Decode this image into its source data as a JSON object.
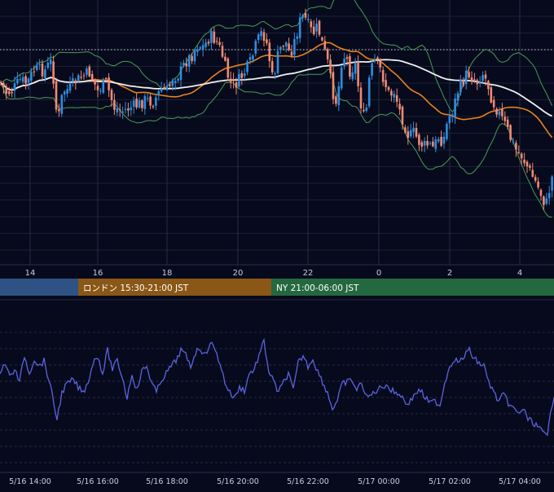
{
  "sessions": [
    {
      "label": "",
      "color": "#2e5283"
    },
    {
      "label": "ロンドン 15:30-21:00 JST",
      "color": "#8a5716"
    },
    {
      "label": "NY 21:00-06:00 JST",
      "color": "#24683f"
    }
  ],
  "chart_data": [
    {
      "type": "candlestick",
      "title": "",
      "x_tick_labels": [
        "14",
        "16",
        "18",
        "20",
        "22",
        "0",
        "2",
        "4"
      ],
      "overlays": [
        {
          "kind": "bollinger-bands",
          "color": "#4a9a58"
        },
        {
          "kind": "moving-average-fast",
          "color": "#e8821e"
        },
        {
          "kind": "moving-average-slow",
          "color": "#f0f0f0"
        }
      ],
      "colors": {
        "up": "#2f8ee0",
        "down": "#ef8a74"
      },
      "reference_line": "dotted",
      "ylim": [
        60,
        330
      ],
      "ohlc_anchors": [
        {
          "x": 0,
          "close": 140
        },
        {
          "x": 8,
          "close": 152
        },
        {
          "x": 15,
          "close": 150
        },
        {
          "x": 25,
          "close": 138
        },
        {
          "x": 33,
          "close": 142
        },
        {
          "x": 42,
          "close": 127
        },
        {
          "x": 55,
          "close": 128
        },
        {
          "x": 62,
          "close": 118
        },
        {
          "x": 66,
          "close": 138
        },
        {
          "x": 70,
          "close": 180
        },
        {
          "x": 73,
          "close": 175
        },
        {
          "x": 77,
          "close": 150
        },
        {
          "x": 85,
          "close": 148
        },
        {
          "x": 92,
          "close": 140
        },
        {
          "x": 100,
          "close": 135
        },
        {
          "x": 110,
          "close": 130
        },
        {
          "x": 120,
          "close": 150
        },
        {
          "x": 130,
          "close": 140
        },
        {
          "x": 140,
          "close": 168
        },
        {
          "x": 150,
          "close": 172
        },
        {
          "x": 160,
          "close": 168
        },
        {
          "x": 170,
          "close": 165
        },
        {
          "x": 178,
          "close": 160
        },
        {
          "x": 188,
          "close": 162
        },
        {
          "x": 198,
          "close": 148
        },
        {
          "x": 206,
          "close": 150
        },
        {
          "x": 212,
          "close": 135
        },
        {
          "x": 220,
          "close": 132
        },
        {
          "x": 228,
          "close": 118
        },
        {
          "x": 235,
          "close": 112
        },
        {
          "x": 242,
          "close": 100
        },
        {
          "x": 250,
          "close": 102
        },
        {
          "x": 258,
          "close": 90
        },
        {
          "x": 265,
          "close": 95
        },
        {
          "x": 272,
          "close": 108
        },
        {
          "x": 278,
          "close": 130
        },
        {
          "x": 285,
          "close": 145
        },
        {
          "x": 292,
          "close": 140
        },
        {
          "x": 300,
          "close": 130
        },
        {
          "x": 308,
          "close": 118
        },
        {
          "x": 315,
          "close": 98
        },
        {
          "x": 322,
          "close": 85
        },
        {
          "x": 328,
          "close": 100
        },
        {
          "x": 335,
          "close": 140
        },
        {
          "x": 340,
          "close": 115
        },
        {
          "x": 345,
          "close": 102
        },
        {
          "x": 350,
          "close": 95
        },
        {
          "x": 356,
          "close": 110
        },
        {
          "x": 362,
          "close": 95
        },
        {
          "x": 368,
          "close": 75
        },
        {
          "x": 373,
          "close": 68
        },
        {
          "x": 378,
          "close": 78
        },
        {
          "x": 384,
          "close": 88
        },
        {
          "x": 390,
          "close": 80
        },
        {
          "x": 396,
          "close": 100
        },
        {
          "x": 402,
          "close": 118
        },
        {
          "x": 408,
          "close": 150
        },
        {
          "x": 414,
          "close": 165
        },
        {
          "x": 418,
          "close": 120
        },
        {
          "x": 424,
          "close": 110
        },
        {
          "x": 430,
          "close": 130
        },
        {
          "x": 436,
          "close": 120
        },
        {
          "x": 442,
          "close": 160
        },
        {
          "x": 448,
          "close": 185
        },
        {
          "x": 454,
          "close": 130
        },
        {
          "x": 460,
          "close": 118
        },
        {
          "x": 466,
          "close": 125
        },
        {
          "x": 472,
          "close": 140
        },
        {
          "x": 478,
          "close": 155
        },
        {
          "x": 484,
          "close": 150
        },
        {
          "x": 490,
          "close": 170
        },
        {
          "x": 496,
          "close": 185
        },
        {
          "x": 502,
          "close": 200
        },
        {
          "x": 508,
          "close": 195
        },
        {
          "x": 514,
          "close": 205
        },
        {
          "x": 520,
          "close": 210
        },
        {
          "x": 526,
          "close": 208
        },
        {
          "x": 532,
          "close": 212
        },
        {
          "x": 538,
          "close": 200
        },
        {
          "x": 544,
          "close": 205
        },
        {
          "x": 550,
          "close": 180
        },
        {
          "x": 556,
          "close": 170
        },
        {
          "x": 562,
          "close": 150
        },
        {
          "x": 568,
          "close": 140
        },
        {
          "x": 574,
          "close": 130
        },
        {
          "x": 580,
          "close": 135
        },
        {
          "x": 586,
          "close": 140
        },
        {
          "x": 592,
          "close": 130
        },
        {
          "x": 598,
          "close": 140
        },
        {
          "x": 604,
          "close": 160
        },
        {
          "x": 610,
          "close": 170
        },
        {
          "x": 616,
          "close": 180
        },
        {
          "x": 622,
          "close": 190
        },
        {
          "x": 628,
          "close": 205
        },
        {
          "x": 634,
          "close": 215
        },
        {
          "x": 640,
          "close": 220
        },
        {
          "x": 646,
          "close": 230
        },
        {
          "x": 652,
          "close": 240
        },
        {
          "x": 658,
          "close": 250
        },
        {
          "x": 664,
          "close": 262
        },
        {
          "x": 670,
          "close": 275
        },
        {
          "x": 676,
          "close": 250
        },
        {
          "x": 680,
          "close": 235
        }
      ]
    },
    {
      "type": "line",
      "title": "",
      "x_tick_labels": [
        "5/16 14:00",
        "5/16 16:00",
        "5/16 18:00",
        "5/16 20:00",
        "5/16 22:00",
        "5/17 00:00",
        "5/17 02:00",
        "5/17 04:00"
      ],
      "series": [
        {
          "color": "#5b63e0"
        }
      ],
      "ylim": [
        400,
        540
      ],
      "values": [
        {
          "x": 0,
          "y": 460
        },
        {
          "x": 6,
          "y": 452
        },
        {
          "x": 12,
          "y": 465
        },
        {
          "x": 18,
          "y": 458
        },
        {
          "x": 24,
          "y": 470
        },
        {
          "x": 30,
          "y": 445
        },
        {
          "x": 36,
          "y": 462
        },
        {
          "x": 42,
          "y": 448
        },
        {
          "x": 48,
          "y": 455
        },
        {
          "x": 54,
          "y": 450
        },
        {
          "x": 60,
          "y": 468
        },
        {
          "x": 66,
          "y": 490
        },
        {
          "x": 70,
          "y": 505
        },
        {
          "x": 76,
          "y": 480
        },
        {
          "x": 82,
          "y": 472
        },
        {
          "x": 90,
          "y": 468
        },
        {
          "x": 96,
          "y": 475
        },
        {
          "x": 102,
          "y": 480
        },
        {
          "x": 108,
          "y": 470
        },
        {
          "x": 114,
          "y": 452
        },
        {
          "x": 120,
          "y": 445
        },
        {
          "x": 126,
          "y": 462
        },
        {
          "x": 132,
          "y": 440
        },
        {
          "x": 138,
          "y": 458
        },
        {
          "x": 144,
          "y": 450
        },
        {
          "x": 150,
          "y": 465
        },
        {
          "x": 156,
          "y": 485
        },
        {
          "x": 162,
          "y": 462
        },
        {
          "x": 168,
          "y": 478
        },
        {
          "x": 174,
          "y": 460
        },
        {
          "x": 180,
          "y": 455
        },
        {
          "x": 186,
          "y": 470
        },
        {
          "x": 192,
          "y": 480
        },
        {
          "x": 198,
          "y": 468
        },
        {
          "x": 204,
          "y": 462
        },
        {
          "x": 210,
          "y": 455
        },
        {
          "x": 216,
          "y": 450
        },
        {
          "x": 222,
          "y": 440
        },
        {
          "x": 228,
          "y": 445
        },
        {
          "x": 234,
          "y": 455
        },
        {
          "x": 240,
          "y": 442
        },
        {
          "x": 246,
          "y": 438
        },
        {
          "x": 252,
          "y": 445
        },
        {
          "x": 258,
          "y": 432
        },
        {
          "x": 264,
          "y": 440
        },
        {
          "x": 270,
          "y": 452
        },
        {
          "x": 276,
          "y": 470
        },
        {
          "x": 282,
          "y": 480
        },
        {
          "x": 288,
          "y": 485
        },
        {
          "x": 294,
          "y": 475
        },
        {
          "x": 300,
          "y": 478
        },
        {
          "x": 306,
          "y": 462
        },
        {
          "x": 312,
          "y": 458
        },
        {
          "x": 318,
          "y": 445
        },
        {
          "x": 324,
          "y": 432
        },
        {
          "x": 330,
          "y": 460
        },
        {
          "x": 336,
          "y": 470
        },
        {
          "x": 342,
          "y": 480
        },
        {
          "x": 348,
          "y": 470
        },
        {
          "x": 354,
          "y": 462
        },
        {
          "x": 360,
          "y": 478
        },
        {
          "x": 366,
          "y": 452
        },
        {
          "x": 372,
          "y": 445
        },
        {
          "x": 378,
          "y": 455
        },
        {
          "x": 384,
          "y": 448
        },
        {
          "x": 390,
          "y": 460
        },
        {
          "x": 396,
          "y": 470
        },
        {
          "x": 402,
          "y": 480
        },
        {
          "x": 408,
          "y": 495
        },
        {
          "x": 414,
          "y": 488
        },
        {
          "x": 420,
          "y": 472
        },
        {
          "x": 426,
          "y": 470
        },
        {
          "x": 432,
          "y": 468
        },
        {
          "x": 438,
          "y": 478
        },
        {
          "x": 444,
          "y": 470
        },
        {
          "x": 450,
          "y": 485
        },
        {
          "x": 456,
          "y": 482
        },
        {
          "x": 462,
          "y": 478
        },
        {
          "x": 468,
          "y": 475
        },
        {
          "x": 474,
          "y": 472
        },
        {
          "x": 480,
          "y": 478
        },
        {
          "x": 486,
          "y": 480
        },
        {
          "x": 492,
          "y": 482
        },
        {
          "x": 498,
          "y": 490
        },
        {
          "x": 504,
          "y": 488
        },
        {
          "x": 510,
          "y": 480
        },
        {
          "x": 516,
          "y": 478
        },
        {
          "x": 522,
          "y": 485
        },
        {
          "x": 528,
          "y": 490
        },
        {
          "x": 534,
          "y": 488
        },
        {
          "x": 540,
          "y": 492
        },
        {
          "x": 546,
          "y": 470
        },
        {
          "x": 552,
          "y": 455
        },
        {
          "x": 558,
          "y": 448
        },
        {
          "x": 564,
          "y": 452
        },
        {
          "x": 570,
          "y": 445
        },
        {
          "x": 576,
          "y": 440
        },
        {
          "x": 582,
          "y": 448
        },
        {
          "x": 588,
          "y": 452
        },
        {
          "x": 594,
          "y": 455
        },
        {
          "x": 600,
          "y": 470
        },
        {
          "x": 606,
          "y": 480
        },
        {
          "x": 612,
          "y": 488
        },
        {
          "x": 618,
          "y": 482
        },
        {
          "x": 624,
          "y": 490
        },
        {
          "x": 630,
          "y": 495
        },
        {
          "x": 636,
          "y": 500
        },
        {
          "x": 642,
          "y": 495
        },
        {
          "x": 648,
          "y": 505
        },
        {
          "x": 654,
          "y": 508
        },
        {
          "x": 660,
          "y": 512
        },
        {
          "x": 666,
          "y": 518
        },
        {
          "x": 672,
          "y": 522
        },
        {
          "x": 676,
          "y": 495
        },
        {
          "x": 680,
          "y": 485
        }
      ]
    }
  ]
}
